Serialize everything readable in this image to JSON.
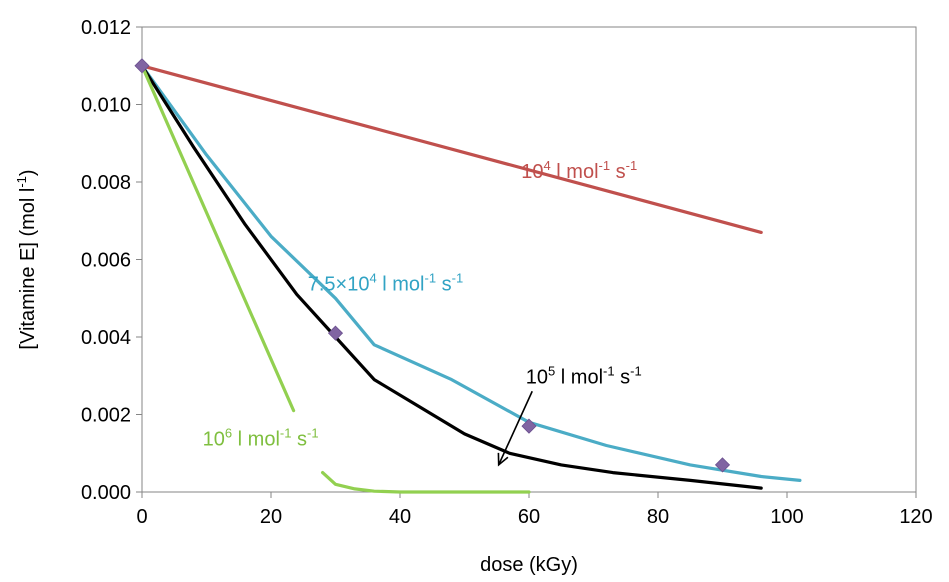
{
  "chart_data": {
    "type": "line",
    "title": "",
    "xlabel": "dose (kGy)",
    "ylabel_parts": {
      "base": "[Vitamine E] (mol l",
      "sup": "-1",
      "end": ")"
    },
    "xlim": [
      0,
      120
    ],
    "ylim": [
      0,
      0.012
    ],
    "x_ticks": [
      0,
      20,
      40,
      60,
      80,
      100,
      120
    ],
    "x_tick_labels": [
      "0",
      "20",
      "40",
      "60",
      "80",
      "100",
      "120"
    ],
    "y_ticks": [
      0,
      0.002,
      0.004,
      0.006,
      0.008,
      0.01,
      0.012
    ],
    "y_tick_labels": [
      "0.000",
      "0.002",
      "0.004",
      "0.006",
      "0.008",
      "0.010",
      "0.012"
    ],
    "grid": false,
    "series": [
      {
        "color": "#c0504d",
        "x": [
          0,
          96
        ],
        "y": [
          0.011,
          0.0067
        ]
      },
      {
        "color": "#4bacc6",
        "x": [
          0,
          10,
          20,
          30,
          36,
          48,
          60,
          72,
          85,
          96,
          102
        ],
        "y": [
          0.011,
          0.0087,
          0.0066,
          0.005,
          0.0038,
          0.0029,
          0.0018,
          0.0012,
          0.0007,
          0.0004,
          0.0003
        ]
      },
      {
        "color": "#000000",
        "x": [
          0,
          8,
          16,
          24,
          30,
          36,
          43,
          50,
          57,
          65,
          73,
          85,
          96
        ],
        "y": [
          0.011,
          0.0089,
          0.0069,
          0.0051,
          0.004,
          0.0029,
          0.0022,
          0.0015,
          0.001,
          0.0007,
          0.0005,
          0.0003,
          0.0001
        ]
      },
      {
        "color": "#92d050",
        "segments": [
          {
            "x": [
              0,
              23.5
            ],
            "y": [
              0.011,
              0.0021
            ]
          },
          {
            "x": [
              28,
              30,
              33,
              36,
              40,
              60
            ],
            "y": [
              0.0005,
              0.0002,
              8e-05,
              2e-05,
              0,
              0
            ]
          }
        ]
      }
    ],
    "markers": {
      "shape": "diamond",
      "color": "#8064a2",
      "x": [
        0,
        30,
        60,
        90
      ],
      "y": [
        0.011,
        0.0041,
        0.0017,
        0.0007
      ]
    },
    "annotations": [
      {
        "base": "10",
        "sup1": "4",
        "mid": " l mol",
        "sup2": "-1",
        "tail": " s",
        "sup3": "-1",
        "color": "#c0504d",
        "x": 58.8,
        "y": 0.0081
      },
      {
        "base": "7.5×10",
        "sup1": "4",
        "mid": " l mol",
        "sup2": "-1",
        "tail": " s",
        "sup3": "-1",
        "color": "#31a3c4",
        "x": 25.7,
        "y": 0.0052
      },
      {
        "base": "10",
        "sup1": "5",
        "mid": " l mol",
        "sup2": "-1",
        "tail": " s",
        "sup3": "-1",
        "color": "#000000",
        "x": 59.5,
        "y": 0.0028
      },
      {
        "base": "10",
        "sup1": "6",
        "mid": " l mol",
        "sup2": "-1",
        "tail": " s",
        "sup3": "-1",
        "color": "#7fbf3f",
        "x": 9.4,
        "y": 0.0012
      }
    ],
    "arrow": {
      "from": [
        60.5,
        0.0026
      ],
      "to": [
        55.3,
        0.0007
      ],
      "color": "#000000"
    }
  }
}
